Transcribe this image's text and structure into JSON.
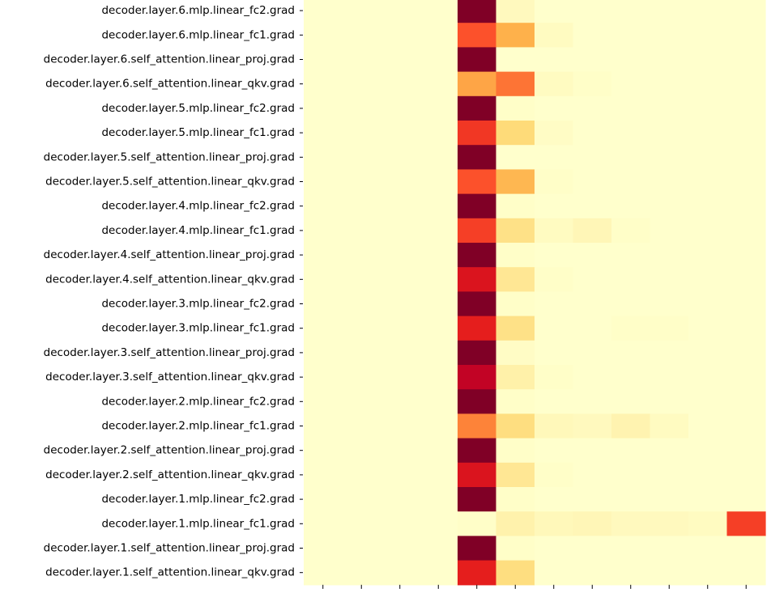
{
  "chart_data": {
    "type": "heatmap",
    "title": "",
    "xlabel": "",
    "ylabel": "",
    "rows": [
      "decoder.layer.6.mlp.linear_fc2.grad",
      "decoder.layer.6.mlp.linear_fc1.grad",
      "decoder.layer.6.self_attention.linear_proj.grad",
      "decoder.layer.6.self_attention.linear_qkv.grad",
      "decoder.layer.5.mlp.linear_fc2.grad",
      "decoder.layer.5.mlp.linear_fc1.grad",
      "decoder.layer.5.self_attention.linear_proj.grad",
      "decoder.layer.5.self_attention.linear_qkv.grad",
      "decoder.layer.4.mlp.linear_fc2.grad",
      "decoder.layer.4.mlp.linear_fc1.grad",
      "decoder.layer.4.self_attention.linear_proj.grad",
      "decoder.layer.4.self_attention.linear_qkv.grad",
      "decoder.layer.3.mlp.linear_fc2.grad",
      "decoder.layer.3.mlp.linear_fc1.grad",
      "decoder.layer.3.self_attention.linear_proj.grad",
      "decoder.layer.3.self_attention.linear_qkv.grad",
      "decoder.layer.2.mlp.linear_fc2.grad",
      "decoder.layer.2.mlp.linear_fc1.grad",
      "decoder.layer.2.self_attention.linear_proj.grad",
      "decoder.layer.2.self_attention.linear_qkv.grad",
      "decoder.layer.1.mlp.linear_fc2.grad",
      "decoder.layer.1.mlp.linear_fc1.grad",
      "decoder.layer.1.self_attention.linear_proj.grad",
      "decoder.layer.1.self_attention.linear_qkv.grad"
    ],
    "n_columns": 12,
    "column_tick_labels_visible": false,
    "colormap": [
      "#ffffcc",
      "#ffeda0",
      "#fed976",
      "#feb24c",
      "#fd8d3c",
      "#fc4e2a",
      "#e31a1c",
      "#bd0026",
      "#800026"
    ],
    "values": [
      [
        0,
        0,
        0,
        0,
        1.0,
        0.04,
        0,
        0,
        0,
        0,
        0,
        0
      ],
      [
        0,
        0,
        0,
        0,
        0.62,
        0.38,
        0.03,
        0,
        0,
        0,
        0,
        0
      ],
      [
        0,
        0,
        0,
        0,
        1.0,
        0,
        0,
        0,
        0,
        0,
        0,
        0
      ],
      [
        0,
        0,
        0,
        0,
        0.42,
        0.55,
        0.03,
        0.01,
        0,
        0,
        0,
        0
      ],
      [
        0,
        0,
        0,
        0,
        1.0,
        0.01,
        0,
        0,
        0,
        0,
        0,
        0
      ],
      [
        0,
        0,
        0,
        0,
        0.68,
        0.24,
        0.02,
        0,
        0,
        0,
        0,
        0
      ],
      [
        0,
        0,
        0,
        0,
        1.0,
        0,
        0,
        0,
        0,
        0,
        0,
        0
      ],
      [
        0,
        0,
        0,
        0,
        0.62,
        0.36,
        0.01,
        0,
        0,
        0,
        0,
        0
      ],
      [
        0,
        0,
        0,
        0,
        1.0,
        0.01,
        0,
        0,
        0,
        0,
        0,
        0
      ],
      [
        0,
        0,
        0,
        0,
        0.66,
        0.2,
        0.03,
        0.06,
        0.01,
        0,
        0,
        0
      ],
      [
        0,
        0,
        0,
        0,
        1.0,
        0.01,
        0,
        0,
        0,
        0,
        0,
        0
      ],
      [
        0,
        0,
        0,
        0,
        0.78,
        0.16,
        0.01,
        0,
        0,
        0,
        0,
        0
      ],
      [
        0,
        0,
        0,
        0,
        1.0,
        0.01,
        0,
        0,
        0,
        0,
        0,
        0
      ],
      [
        0,
        0,
        0,
        0,
        0.74,
        0.2,
        0,
        0,
        0.01,
        0.01,
        0,
        0
      ],
      [
        0,
        0,
        0,
        0,
        1.0,
        0.02,
        0,
        0,
        0,
        0,
        0,
        0
      ],
      [
        0,
        0,
        0,
        0,
        0.86,
        0.1,
        0.01,
        0,
        0,
        0,
        0,
        0
      ],
      [
        0,
        0,
        0,
        0,
        1.0,
        0.01,
        0,
        0,
        0,
        0,
        0,
        0
      ],
      [
        0,
        0,
        0,
        0,
        0.52,
        0.22,
        0.05,
        0.04,
        0.08,
        0.03,
        0,
        0
      ],
      [
        0,
        0,
        0,
        0,
        1.0,
        0.01,
        0,
        0,
        0,
        0,
        0,
        0
      ],
      [
        0,
        0,
        0,
        0,
        0.78,
        0.16,
        0.01,
        0,
        0,
        0,
        0,
        0
      ],
      [
        0,
        0,
        0,
        0,
        1.0,
        0.01,
        0,
        0,
        0,
        0,
        0,
        0
      ],
      [
        0,
        0,
        0,
        0,
        0.01,
        0.09,
        0.05,
        0.06,
        0.04,
        0.04,
        0.03,
        0.66
      ],
      [
        0,
        0,
        0,
        0,
        1.0,
        0.01,
        0,
        0,
        0,
        0,
        0,
        0
      ],
      [
        0,
        0,
        0,
        0,
        0.74,
        0.22,
        0,
        0,
        0,
        0,
        0,
        0
      ]
    ]
  }
}
